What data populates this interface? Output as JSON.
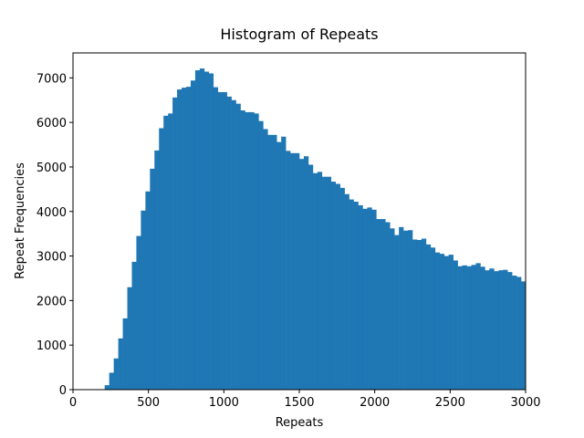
{
  "chart_data": {
    "type": "histogram",
    "title": "Histogram of Repeats",
    "x_label": "Repeats",
    "y_label": "Repeat Frequencies",
    "color": "#1f77b4",
    "grid": false,
    "bins": [
      0,
      30,
      60,
      90,
      120,
      150,
      180,
      210,
      240,
      270,
      300,
      330,
      360,
      390,
      420,
      450,
      480,
      510,
      540,
      570,
      600,
      630,
      660,
      690,
      720,
      750,
      780,
      810,
      840,
      870,
      900,
      930,
      960,
      990,
      1020,
      1050,
      1080,
      1110,
      1140,
      1170,
      1200,
      1230,
      1260,
      1290,
      1320,
      1350,
      1380,
      1410,
      1440,
      1470,
      1500,
      1530,
      1560,
      1590,
      1620,
      1650,
      1680,
      1710,
      1740,
      1770,
      1800,
      1830,
      1860,
      1890,
      1920,
      1950,
      1980,
      2010,
      2040,
      2070,
      2100,
      2130,
      2160,
      2190,
      2220,
      2250,
      2280,
      2310,
      2340,
      2370,
      2400,
      2430,
      2460,
      2490,
      2520,
      2550,
      2580,
      2610,
      2640,
      2670,
      2700,
      2730,
      2760,
      2790,
      2820,
      2850,
      2880,
      2910,
      2940,
      2970,
      3000
    ],
    "counts": [
      0,
      0,
      0,
      0,
      0,
      0,
      0,
      100,
      380,
      700,
      1150,
      1600,
      2300,
      2870,
      3450,
      4020,
      4450,
      4960,
      5370,
      5870,
      6150,
      6200,
      6560,
      6740,
      6780,
      6800,
      6940,
      7170,
      7210,
      7140,
      7100,
      6790,
      6680,
      6680,
      6580,
      6500,
      6420,
      6270,
      6230,
      6230,
      6200,
      6030,
      5850,
      5720,
      5720,
      5560,
      5680,
      5360,
      5310,
      5310,
      5180,
      5240,
      5050,
      4860,
      4890,
      4780,
      4780,
      4670,
      4620,
      4530,
      4390,
      4270,
      4220,
      4140,
      4060,
      4090,
      4040,
      3830,
      3830,
      3760,
      3620,
      3470,
      3650,
      3570,
      3580,
      3370,
      3360,
      3390,
      3260,
      3190,
      3080,
      3050,
      3000,
      3030,
      2900,
      2770,
      2790,
      2770,
      2800,
      2840,
      2760,
      2680,
      2720,
      2660,
      2680,
      2690,
      2640,
      2560,
      2530,
      2430
    ],
    "xlim": [
      0,
      3000
    ],
    "xticks": [
      0,
      500,
      1000,
      1500,
      2000,
      2500,
      3000
    ],
    "ylim": [
      0,
      7560
    ],
    "yticks": [
      0,
      1000,
      2000,
      3000,
      4000,
      5000,
      6000,
      7000
    ]
  }
}
